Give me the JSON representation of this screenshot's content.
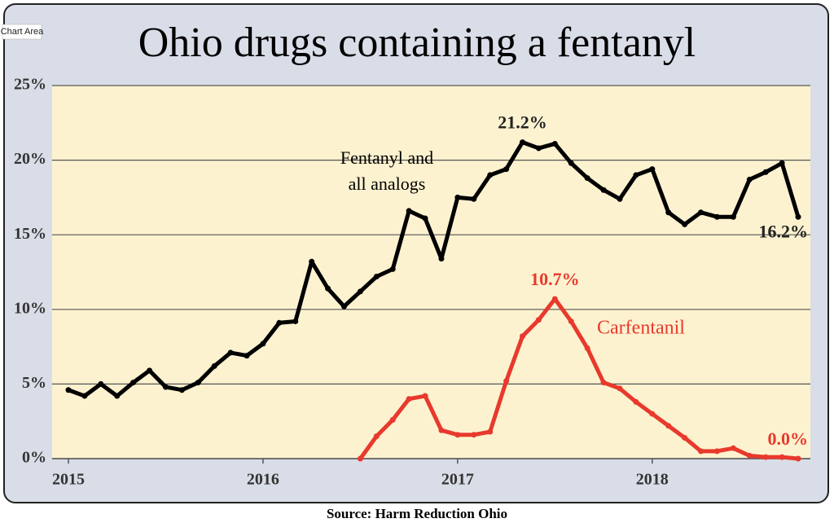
{
  "chart_data": {
    "type": "line",
    "title": "Ohio drugs containing a fentanyl",
    "tooltip": "Chart Area",
    "source": "Source: Harm Reduction Ohio",
    "categories": [
      "2015",
      null,
      null,
      null,
      null,
      null,
      null,
      null,
      null,
      null,
      null,
      null,
      "2016",
      null,
      null,
      null,
      null,
      null,
      null,
      null,
      null,
      null,
      null,
      null,
      "2017",
      null,
      null,
      null,
      null,
      null,
      null,
      null,
      null,
      null,
      null,
      null,
      "2018",
      null,
      null,
      null,
      null,
      null,
      null,
      null,
      null,
      null
    ],
    "ylim": [
      0,
      25
    ],
    "yticks": [
      {
        "value": 0,
        "label": "0%"
      },
      {
        "value": 5,
        "label": "5%"
      },
      {
        "value": 10,
        "label": "10%"
      },
      {
        "value": 15,
        "label": "15%"
      },
      {
        "value": 20,
        "label": "20%"
      },
      {
        "value": 25,
        "label": "25%"
      }
    ],
    "grid": true,
    "series": [
      {
        "name": "Fentanyl and all analogs",
        "color": "#000000",
        "values": [
          4.6,
          4.2,
          5.0,
          4.2,
          5.1,
          5.9,
          4.8,
          4.6,
          5.1,
          6.2,
          7.1,
          6.9,
          7.7,
          9.1,
          9.2,
          13.2,
          11.4,
          10.2,
          11.2,
          12.2,
          12.7,
          16.6,
          16.1,
          13.4,
          17.5,
          17.4,
          19.0,
          19.4,
          21.2,
          20.8,
          21.1,
          19.8,
          18.8,
          18.0,
          17.4,
          19.0,
          19.4,
          16.5,
          15.7,
          16.5,
          16.2,
          16.2,
          18.7,
          19.2,
          19.8,
          16.2
        ],
        "value_labels": [
          null,
          null,
          null,
          null,
          null,
          null,
          null,
          null,
          null,
          null,
          null,
          null,
          null,
          null,
          null,
          null,
          null,
          null,
          null,
          null,
          null,
          null,
          null,
          null,
          null,
          null,
          null,
          null,
          "21.2%",
          null,
          null,
          null,
          null,
          null,
          null,
          null,
          null,
          null,
          null,
          null,
          null,
          null,
          null,
          null,
          null,
          "16.2%"
        ]
      },
      {
        "name": "Carfentanil",
        "color": "#e8392d",
        "values": [
          null,
          null,
          null,
          null,
          null,
          null,
          null,
          null,
          null,
          null,
          null,
          null,
          null,
          null,
          null,
          null,
          null,
          null,
          0.0,
          1.5,
          2.6,
          4.0,
          4.2,
          1.9,
          1.6,
          1.6,
          1.8,
          5.2,
          8.2,
          9.3,
          10.7,
          9.2,
          7.4,
          5.1,
          4.7,
          3.8,
          3.0,
          2.2,
          1.4,
          0.5,
          0.5,
          0.7,
          0.2,
          0.1,
          0.1,
          0.0
        ],
        "value_labels": [
          null,
          null,
          null,
          null,
          null,
          null,
          null,
          null,
          null,
          null,
          null,
          null,
          null,
          null,
          null,
          null,
          null,
          null,
          null,
          null,
          null,
          null,
          null,
          null,
          null,
          null,
          null,
          null,
          null,
          null,
          "10.7%",
          null,
          null,
          null,
          null,
          null,
          null,
          null,
          null,
          null,
          null,
          null,
          null,
          null,
          null,
          "0.0%"
        ]
      }
    ]
  }
}
